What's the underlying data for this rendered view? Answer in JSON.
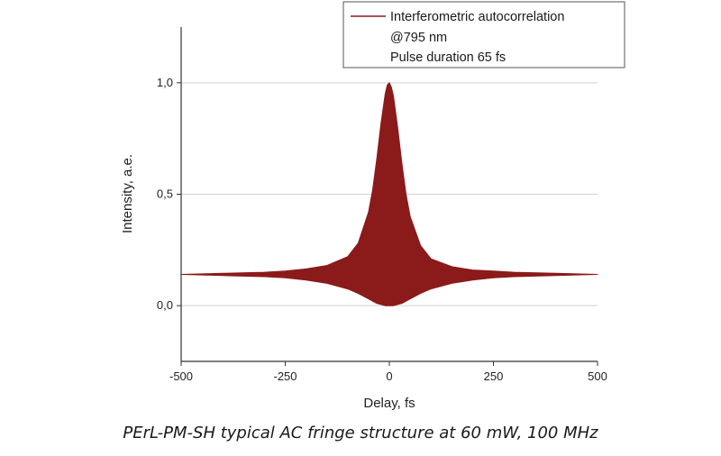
{
  "colors": {
    "trace": "#8b1a1a",
    "grid": "#d0d0d0",
    "axis": "#333333"
  },
  "caption": "PErL-PM-SH typical AC fringe structure at 60 mW, 100 MHz",
  "chart_data": {
    "type": "area",
    "xlabel": "Delay, fs",
    "ylabel": "Intensity, a.e.",
    "xlim": [
      -500,
      500
    ],
    "ylim": [
      -0.25,
      1.25
    ],
    "x_ticks": [
      -500,
      -250,
      0,
      250,
      500
    ],
    "x_tick_labels": [
      "-500",
      "-250",
      "0",
      "250",
      "500"
    ],
    "y_ticks": [
      0.0,
      0.5,
      1.0
    ],
    "y_tick_labels": [
      "0,0",
      "0,5",
      "1,0"
    ],
    "grid": true,
    "legend": {
      "placement": "top-right",
      "entries": [
        "Interferometric autocorrelation",
        "@795 nm",
        "Pulse duration 65 fs"
      ]
    },
    "series": [
      {
        "name": "Interferometric autocorrelation",
        "x": [
          -500,
          -400,
          -300,
          -250,
          -200,
          -150,
          -100,
          -75,
          -50,
          -40,
          -30,
          -20,
          -10,
          -5,
          0,
          5,
          10,
          20,
          30,
          40,
          50,
          75,
          100,
          150,
          200,
          250,
          300,
          400,
          500
        ],
        "upper": [
          0.14,
          0.145,
          0.15,
          0.155,
          0.165,
          0.18,
          0.22,
          0.28,
          0.42,
          0.52,
          0.66,
          0.82,
          0.95,
          0.99,
          1.0,
          0.98,
          0.94,
          0.8,
          0.64,
          0.5,
          0.4,
          0.27,
          0.21,
          0.175,
          0.16,
          0.155,
          0.15,
          0.145,
          0.14
        ],
        "lower": [
          0.14,
          0.135,
          0.13,
          0.125,
          0.115,
          0.1,
          0.075,
          0.055,
          0.03,
          0.02,
          0.01,
          0.005,
          0.0,
          0.0,
          0.0,
          0.0,
          0.0,
          0.005,
          0.01,
          0.02,
          0.03,
          0.055,
          0.075,
          0.1,
          0.115,
          0.125,
          0.13,
          0.135,
          0.14
        ]
      }
    ]
  }
}
